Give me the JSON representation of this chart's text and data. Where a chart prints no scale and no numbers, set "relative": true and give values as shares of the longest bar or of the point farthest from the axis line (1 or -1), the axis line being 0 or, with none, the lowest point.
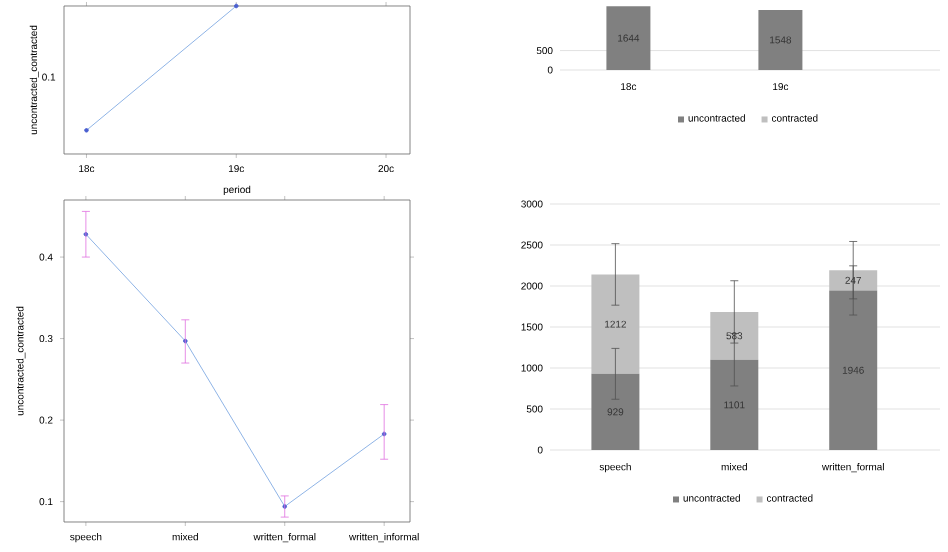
{
  "chart_data": [
    {
      "type": "line",
      "xlabel": "period",
      "ylabel": "uncontracted_contracted",
      "categories": [
        "18c",
        "19c",
        "20c"
      ],
      "series": [
        {
          "color": "#8fb4e6",
          "values": [
            0.16,
            1,
            null
          ]
        }
      ],
      "relative": true,
      "annotations": [
        "0.1"
      ],
      "marker": "circle"
    },
    {
      "type": "bar",
      "stacked": true,
      "categories": [
        "18c",
        "19c"
      ],
      "series": [
        {
          "name": "uncontracted",
          "color": "#808080",
          "values": [
            1644,
            1548
          ],
          "value_labels": [
            "1644",
            "1548"
          ]
        },
        {
          "name": "contracted",
          "color": "#bfbfbf",
          "values": [
            null,
            null
          ]
        }
      ],
      "ylim": [
        0,
        1700
      ],
      "yticks": [
        0,
        500
      ],
      "grid": "y",
      "legend": "bottom"
    },
    {
      "type": "line",
      "ylabel": "uncontracted_contracted",
      "categories": [
        "speech",
        "mixed",
        "written_formal",
        "written_informal"
      ],
      "series": [
        {
          "color": "#8fb4e6",
          "values": [
            0.428,
            0.297,
            0.094,
            0.183
          ],
          "errors": [
            [
              0.4,
              0.456
            ],
            [
              0.27,
              0.323
            ],
            [
              0.081,
              0.107
            ],
            [
              0.152,
              0.219
            ]
          ]
        }
      ],
      "ylim": [
        0.075,
        0.47
      ],
      "yticks": [
        0.1,
        0.2,
        0.3,
        0.4
      ],
      "marker": "circle"
    },
    {
      "type": "bar",
      "stacked": true,
      "categories": [
        "speech",
        "mixed",
        "written_formal"
      ],
      "series": [
        {
          "name": "uncontracted",
          "color": "#808080",
          "values": [
            929,
            1101,
            1946
          ],
          "errors": [
            310,
            320,
            300
          ]
        },
        {
          "name": "contracted",
          "color": "#bfbfbf",
          "values": [
            1212,
            583,
            247
          ],
          "errors": [
            375,
            380,
            350
          ]
        }
      ],
      "ylim": [
        0,
        3000
      ],
      "yticks": [
        0,
        500,
        1000,
        1500,
        2000,
        2500,
        3000
      ],
      "grid": "y",
      "legend": "bottom",
      "data_labels": true
    }
  ]
}
